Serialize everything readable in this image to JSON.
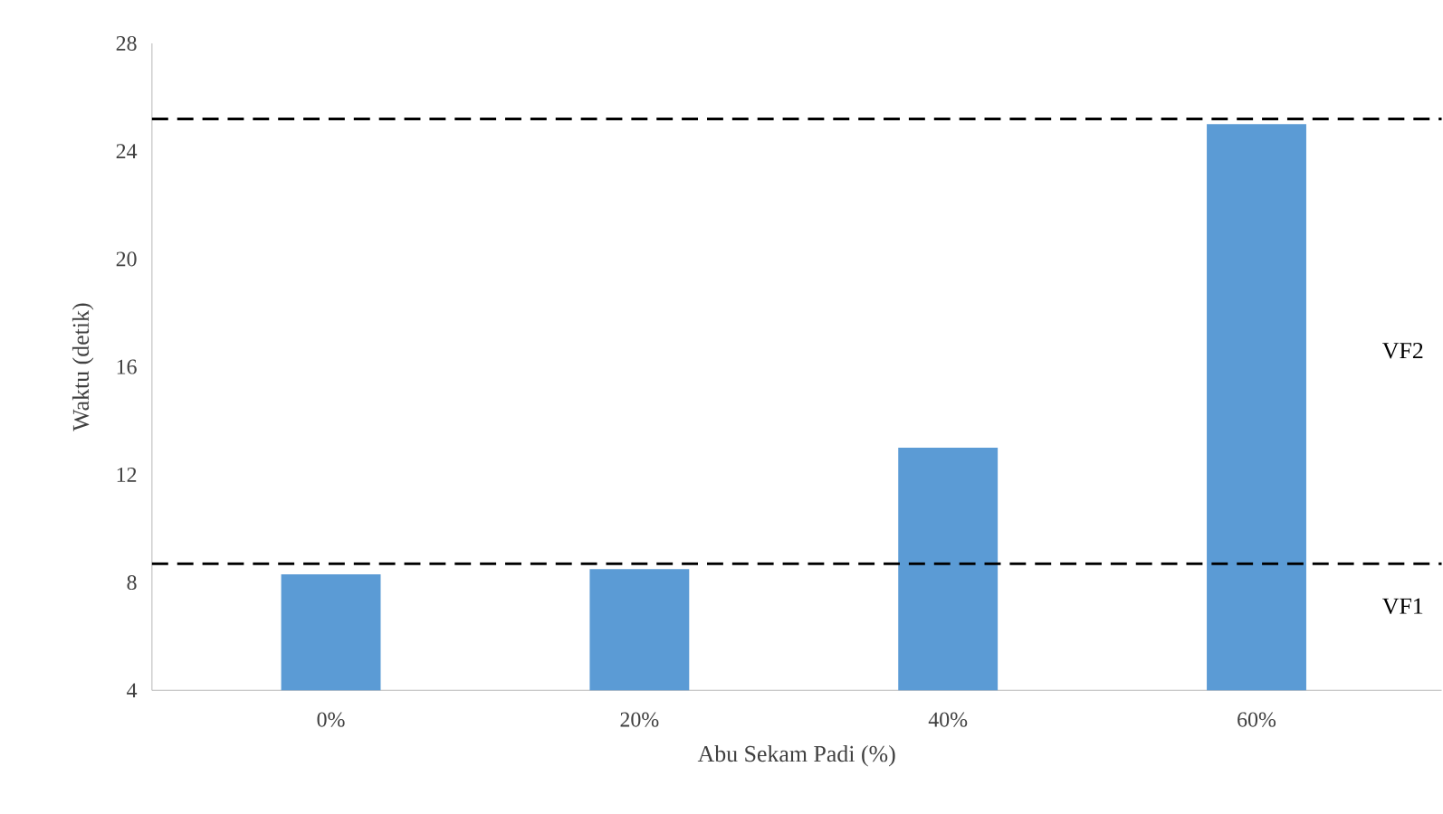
{
  "chart_data": {
    "type": "bar",
    "xlabel": "Abu Sekam Padi (%)",
    "ylabel": "Waktu (detik)",
    "categories": [
      "0%",
      "20%",
      "40%",
      "60%"
    ],
    "values": [
      8.3,
      8.5,
      13,
      25
    ],
    "color": "#5b9bd5",
    "ylim": [
      4,
      28
    ],
    "yticks": [
      4,
      8,
      12,
      16,
      20,
      24,
      28
    ],
    "grid": false,
    "ref_lines": [
      {
        "axis": "y",
        "value": 25.2,
        "line_style": "dashed",
        "color": "#000000"
      },
      {
        "axis": "y",
        "value": 8.7,
        "line_style": "dashed",
        "color": "#000000"
      }
    ],
    "annotations": [
      "VF2",
      "VF1"
    ]
  }
}
